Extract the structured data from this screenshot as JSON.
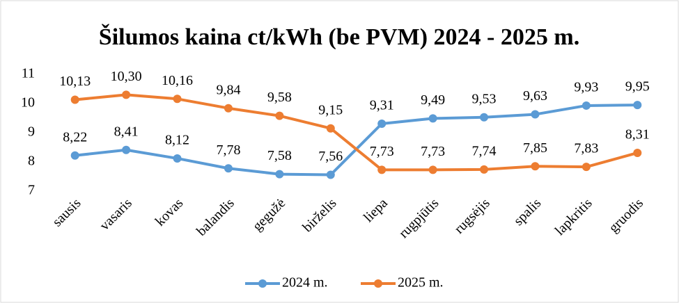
{
  "chart_data": {
    "type": "line",
    "title": "Šilumos kaina ct/kWh (be PVM) 2024 - 2025 m.",
    "categories": [
      "sausis",
      "vasaris",
      "kovas",
      "balandis",
      "gegužė",
      "birželis",
      "liepa",
      "rugpjūtis",
      "rugsėjis",
      "spalis",
      "lapkritis",
      "gruodis"
    ],
    "series": [
      {
        "name": "2024 m.",
        "color": "#5b9bd5",
        "values": [
          8.22,
          8.41,
          8.12,
          7.78,
          7.58,
          7.56,
          9.31,
          9.49,
          9.53,
          9.63,
          9.93,
          9.95
        ],
        "value_labels": [
          "8,22",
          "8,41",
          "8,12",
          "7,78",
          "7,58",
          "7,56",
          "9,31",
          "9,49",
          "9,53",
          "9,63",
          "9,93",
          "9,95"
        ]
      },
      {
        "name": "2025 m.",
        "color": "#ed7d31",
        "values": [
          10.13,
          10.3,
          10.16,
          9.84,
          9.58,
          9.15,
          7.73,
          7.73,
          7.74,
          7.85,
          7.83,
          8.31
        ],
        "value_labels": [
          "10,13",
          "10,30",
          "10,16",
          "9,84",
          "9,58",
          "9,15",
          "7,73",
          "7,73",
          "7,74",
          "7,85",
          "7,83",
          "8,31"
        ]
      }
    ],
    "ylim": [
      7,
      11
    ],
    "yticks": [
      7,
      8,
      9,
      10,
      11
    ],
    "grid": false,
    "legend": "bottom"
  }
}
